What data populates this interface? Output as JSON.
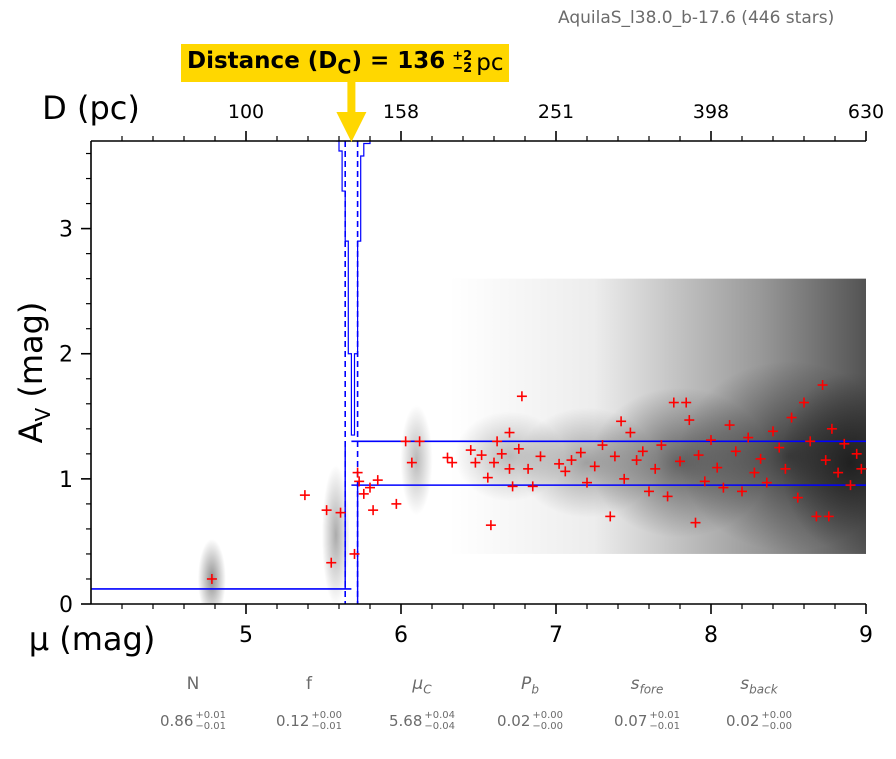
{
  "header": {
    "field_label": "AquilaS_l38.0_b-17.6 (446 stars)"
  },
  "distance_box": {
    "label": "Distance (D",
    "label_sub": "C",
    "label_close": ") = 136",
    "err_plus": "+2",
    "err_minus": "−2",
    "unit": "pc"
  },
  "chart_data": {
    "type": "scatter",
    "xlabel": "μ (mag)",
    "ylabel": "A_V (mag)",
    "top_axis_label": "D (pc)",
    "xlim": [
      4.0,
      9.0
    ],
    "ylim": [
      0.0,
      3.7
    ],
    "x_ticks": [
      5,
      6,
      7,
      8,
      9
    ],
    "y_ticks": [
      0,
      1,
      2,
      3
    ],
    "top_ticks_mu": [
      5,
      6,
      7,
      8,
      9
    ],
    "top_tick_labels": [
      "100",
      "158",
      "251",
      "398",
      "630"
    ],
    "grid": false,
    "distance_modulus": 5.68,
    "distance_modulus_err": [
      5.64,
      5.72
    ],
    "foreground_extinction": 0.12,
    "background_band": [
      0.95,
      1.3
    ],
    "background_center": 1.13,
    "stars_sample": [
      [
        4.78,
        0.2
      ],
      [
        5.38,
        0.87
      ],
      [
        5.52,
        0.75
      ],
      [
        5.55,
        0.33
      ],
      [
        5.61,
        0.73
      ],
      [
        5.7,
        0.4
      ],
      [
        5.72,
        1.05
      ],
      [
        5.73,
        0.98
      ],
      [
        5.76,
        0.88
      ],
      [
        5.8,
        0.93
      ],
      [
        5.82,
        0.75
      ],
      [
        5.85,
        0.99
      ],
      [
        5.97,
        0.8
      ],
      [
        6.03,
        1.3
      ],
      [
        6.07,
        1.13
      ],
      [
        6.12,
        1.3
      ],
      [
        6.3,
        1.17
      ],
      [
        6.33,
        1.13
      ],
      [
        6.45,
        1.23
      ],
      [
        6.48,
        1.13
      ],
      [
        6.52,
        1.19
      ],
      [
        6.56,
        1.01
      ],
      [
        6.58,
        0.63
      ],
      [
        6.6,
        1.13
      ],
      [
        6.62,
        1.3
      ],
      [
        6.65,
        1.2
      ],
      [
        6.7,
        1.37
      ],
      [
        6.7,
        1.08
      ],
      [
        6.72,
        0.94
      ],
      [
        6.76,
        1.24
      ],
      [
        6.78,
        1.66
      ],
      [
        6.82,
        1.08
      ],
      [
        6.85,
        0.94
      ],
      [
        6.9,
        1.18
      ],
      [
        7.02,
        1.12
      ],
      [
        7.06,
        1.06
      ],
      [
        7.1,
        1.15
      ],
      [
        7.16,
        1.21
      ],
      [
        7.2,
        0.97
      ],
      [
        7.25,
        1.1
      ],
      [
        7.3,
        1.27
      ],
      [
        7.35,
        0.7
      ],
      [
        7.38,
        1.18
      ],
      [
        7.42,
        1.46
      ],
      [
        7.44,
        1.0
      ],
      [
        7.48,
        1.37
      ],
      [
        7.52,
        1.15
      ],
      [
        7.56,
        1.22
      ],
      [
        7.6,
        0.9
      ],
      [
        7.64,
        1.08
      ],
      [
        7.68,
        1.27
      ],
      [
        7.72,
        0.86
      ],
      [
        7.76,
        1.61
      ],
      [
        7.8,
        1.14
      ],
      [
        7.84,
        1.61
      ],
      [
        7.86,
        1.47
      ],
      [
        7.9,
        0.65
      ],
      [
        7.92,
        1.19
      ],
      [
        7.96,
        0.98
      ],
      [
        8.0,
        1.31
      ],
      [
        8.04,
        1.09
      ],
      [
        8.08,
        0.93
      ],
      [
        8.12,
        1.43
      ],
      [
        8.16,
        1.22
      ],
      [
        8.2,
        0.9
      ],
      [
        8.24,
        1.33
      ],
      [
        8.28,
        1.05
      ],
      [
        8.32,
        1.16
      ],
      [
        8.36,
        0.97
      ],
      [
        8.4,
        1.38
      ],
      [
        8.44,
        1.25
      ],
      [
        8.48,
        1.08
      ],
      [
        8.52,
        1.49
      ],
      [
        8.56,
        0.85
      ],
      [
        8.6,
        1.61
      ],
      [
        8.64,
        1.3
      ],
      [
        8.68,
        0.7
      ],
      [
        8.72,
        1.75
      ],
      [
        8.74,
        1.15
      ],
      [
        8.76,
        0.7
      ],
      [
        8.78,
        1.4
      ],
      [
        8.82,
        1.05
      ],
      [
        8.86,
        1.28
      ],
      [
        8.9,
        0.95
      ],
      [
        8.94,
        1.2
      ],
      [
        8.97,
        1.08
      ]
    ]
  },
  "colors": {
    "stars": "#ff0000",
    "model_lines": "#0000ff",
    "highlight": "#ffd700",
    "density": "#000000"
  },
  "parameters": [
    {
      "name": "N",
      "italic": false,
      "value": "0.86",
      "plus": "+0.01",
      "minus": "−0.01"
    },
    {
      "name": "f",
      "italic": false,
      "value": "0.12",
      "plus": "+0.00",
      "minus": "−0.01"
    },
    {
      "name": "μ_C",
      "italic": true,
      "value": "5.68",
      "plus": "+0.04",
      "minus": "−0.04"
    },
    {
      "name": "P_b",
      "italic": true,
      "value": "0.02",
      "plus": "+0.00",
      "minus": "−0.00"
    },
    {
      "name": "s_fore",
      "italic": true,
      "value": "0.07",
      "plus": "+0.01",
      "minus": "−0.01"
    },
    {
      "name": "s_back",
      "italic": true,
      "value": "0.02",
      "plus": "+0.00",
      "minus": "−0.00"
    }
  ]
}
